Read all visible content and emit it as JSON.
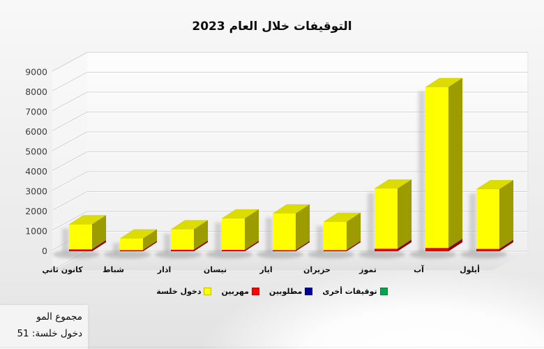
{
  "chart_data": {
    "type": "bar",
    "variant": "3d-stacked-column",
    "title": "التوقيفات خلال العام 2023",
    "categories": [
      "كانون ثاني",
      "شباط",
      "اذار",
      "نيسان",
      "ايار",
      "حزيران",
      "تموز",
      "آب",
      "أيلول"
    ],
    "series": [
      {
        "name": "دخول خلسة",
        "color": "#FFFF00",
        "values": [
          1250,
          580,
          1020,
          1580,
          1840,
          1420,
          3020,
          8080,
          3000
        ]
      },
      {
        "name": "مهربين",
        "color": "#FF0000",
        "values": [
          100,
          60,
          80,
          70,
          60,
          60,
          130,
          170,
          120
        ]
      },
      {
        "name": "مطلوبين",
        "color": "#00009B",
        "values": [
          0,
          0,
          0,
          0,
          0,
          0,
          0,
          0,
          0
        ]
      },
      {
        "name": "توقيفات أخرى",
        "color": "#00A64F",
        "values": [
          0,
          0,
          0,
          0,
          0,
          0,
          0,
          0,
          0
        ]
      }
    ],
    "stack_order_bottom_to_top": [
      "مهربين",
      "دخول خلسة"
    ],
    "ylim": [
      0,
      9000
    ],
    "ytick_step": 1000,
    "yticks": [
      "0",
      "1000",
      "2000",
      "3000",
      "4000",
      "5000",
      "6000",
      "7000",
      "8000",
      "9000"
    ],
    "grid": "on",
    "legend_position": "bottom"
  },
  "legend": {
    "items": [
      {
        "label": "دخول خلسة",
        "color": "#FFFF00"
      },
      {
        "label": "مهربين",
        "color": "#FF0000"
      },
      {
        "label": "مطلوبين",
        "color": "#00009B"
      },
      {
        "label": "توقيفات أخرى",
        "color": "#00A64F"
      }
    ]
  },
  "info_box": {
    "line1": "مجموع المو",
    "line2": "دخول خلسة: 51"
  },
  "colors": {
    "bar_front_yellow": "#FFFF00",
    "bar_top_yellow": "#DCDC00",
    "bar_side_yellow": "#9C9C00",
    "bar_front_red": "#E80000",
    "bar_side_red": "#8F0000",
    "gridline": "#d4d4d4",
    "axis_text": "#3c3c3c",
    "category_text": "#111111"
  }
}
